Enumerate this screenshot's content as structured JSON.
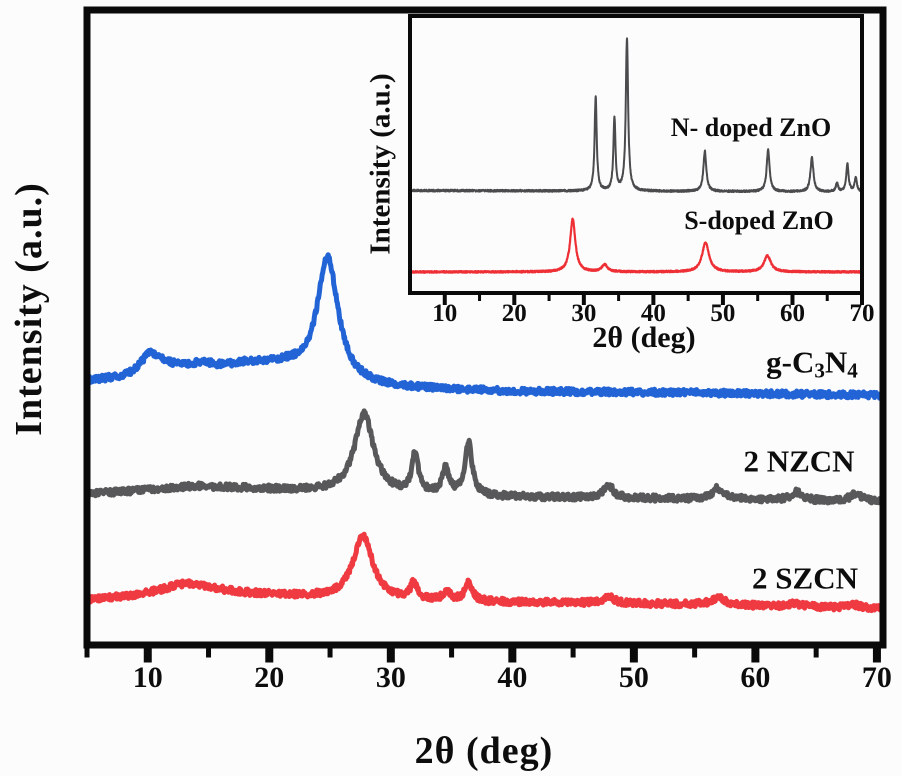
{
  "figure": {
    "main": {
      "xlabel": "2θ (deg)",
      "ylabel": "Intensity (a.u.)",
      "xtick_labels": [
        "10",
        "20",
        "30",
        "40",
        "50",
        "60",
        "70"
      ],
      "series_labels": {
        "gcn": {
          "p1": "g-C",
          "s1": "3",
          "p2": "N",
          "s2": "4"
        },
        "nzcn": "2 NZCN",
        "szcn": "2 SZCN"
      }
    },
    "inset": {
      "xlabel": "2θ (deg)",
      "ylabel": "Intensity (a.u.)",
      "xtick_labels": [
        "10",
        "20",
        "30",
        "40",
        "50",
        "60",
        "70"
      ],
      "series_labels": {
        "n_zno": "N- doped ZnO",
        "s_zno": "S-doped ZnO"
      }
    }
  },
  "chart_data": [
    {
      "id": "main",
      "type": "line",
      "title": "",
      "xlabel": "2θ (deg)",
      "ylabel": "Intensity (a.u.)",
      "xlim": [
        5,
        70.5
      ],
      "ylim": [
        0,
        1000
      ],
      "xticks": [
        10,
        20,
        30,
        40,
        50,
        60,
        70
      ],
      "minor_xticks": [
        5,
        15,
        25,
        35,
        45,
        55,
        65
      ],
      "grid": false,
      "legend_position": "labels-on-curves",
      "step": 0.05,
      "series": [
        {
          "name": "g-C3N4",
          "color": "#2264d6",
          "stroke_width": 5,
          "noise": 5,
          "baseline": [
            [
              5,
              415
            ],
            [
              8.5,
              418
            ],
            [
              9.6,
              421
            ],
            [
              20,
              432
            ],
            [
              23.5,
              416
            ],
            [
              26.5,
              408
            ],
            [
              30,
              404
            ],
            [
              40,
              399
            ],
            [
              55,
              397
            ],
            [
              70.5,
              393
            ]
          ],
          "peaks": [
            [
              10.2,
              30,
              1.0
            ],
            [
              11.5,
              10,
              1.5
            ],
            [
              14.4,
              12,
              1.5
            ],
            [
              18.0,
              9,
              1.8
            ],
            [
              21.6,
              9,
              1.5
            ],
            [
              24.8,
              196,
              1.05
            ]
          ]
        },
        {
          "name": "2 NZCN",
          "color": "#58585a",
          "stroke_width": 5,
          "noise": 5,
          "baseline": [
            [
              5,
              238
            ],
            [
              10,
              244
            ],
            [
              14,
              250
            ],
            [
              20,
              245
            ],
            [
              26,
              240
            ],
            [
              30,
              236
            ],
            [
              40,
              233
            ],
            [
              50,
              231
            ],
            [
              60,
              229
            ],
            [
              70.5,
              225
            ]
          ],
          "peaks": [
            [
              27.8,
              126,
              0.95
            ],
            [
              32.0,
              62,
              0.33
            ],
            [
              34.5,
              40,
              0.33
            ],
            [
              36.4,
              82,
              0.36
            ],
            [
              47.9,
              21,
              0.45
            ],
            [
              56.9,
              17,
              0.55
            ],
            [
              63.4,
              13,
              0.55
            ],
            [
              68.3,
              12,
              0.6
            ]
          ]
        },
        {
          "name": "2 SZCN",
          "color": "#ee3a40",
          "stroke_width": 5,
          "noise": 5,
          "baseline": [
            [
              5,
              70
            ],
            [
              10,
              76
            ],
            [
              16,
              80
            ],
            [
              22,
              76
            ],
            [
              28,
              70
            ],
            [
              35,
              68
            ],
            [
              45,
              66
            ],
            [
              55,
              64
            ],
            [
              70.5,
              57
            ]
          ],
          "peaks": [
            [
              13.2,
              18,
              2.5
            ],
            [
              27.7,
              100,
              1.0
            ],
            [
              31.9,
              26,
              0.33
            ],
            [
              34.6,
              16,
              0.33
            ],
            [
              36.4,
              30,
              0.35
            ],
            [
              47.9,
              12,
              0.5
            ],
            [
              57.0,
              12,
              0.6
            ],
            [
              63.2,
              6,
              0.55
            ],
            [
              68.0,
              6,
              0.6
            ]
          ]
        }
      ]
    },
    {
      "id": "inset",
      "type": "line",
      "title": "",
      "xlabel": "2θ (deg)",
      "ylabel": "Intensity (a.u.)",
      "xlim": [
        5,
        70
      ],
      "ylim": [
        0,
        100
      ],
      "xticks": [
        10,
        20,
        30,
        40,
        50,
        60,
        70
      ],
      "minor_xticks": [
        15,
        25,
        35,
        45,
        55,
        65
      ],
      "grid": false,
      "legend_position": "labels-on-curves",
      "step": 0.03,
      "series": [
        {
          "name": "N- doped ZnO",
          "color": "#4b4b4d",
          "stroke_width": 2,
          "noise": 0.35,
          "baseline": [
            [
              5,
              37
            ],
            [
              70,
              36.5
            ]
          ],
          "peaks": [
            [
              31.7,
              34,
              0.18
            ],
            [
              34.4,
              26,
              0.18
            ],
            [
              36.2,
              55,
              0.2
            ],
            [
              47.4,
              14.5,
              0.25
            ],
            [
              56.5,
              15,
              0.25
            ],
            [
              62.8,
              12.5,
              0.25
            ],
            [
              66.4,
              3,
              0.2
            ],
            [
              67.9,
              10,
              0.2
            ],
            [
              69.1,
              5,
              0.2
            ]
          ]
        },
        {
          "name": "S-doped ZnO",
          "color": "#ee2f35",
          "stroke_width": 2.2,
          "noise": 0.3,
          "baseline": [
            [
              5,
              7.6
            ],
            [
              70,
              7.6
            ]
          ],
          "peaks": [
            [
              28.4,
              19,
              0.45
            ],
            [
              33.0,
              2.5,
              0.5
            ],
            [
              47.5,
              10.5,
              0.6
            ],
            [
              56.4,
              5.8,
              0.6
            ]
          ]
        }
      ]
    }
  ]
}
